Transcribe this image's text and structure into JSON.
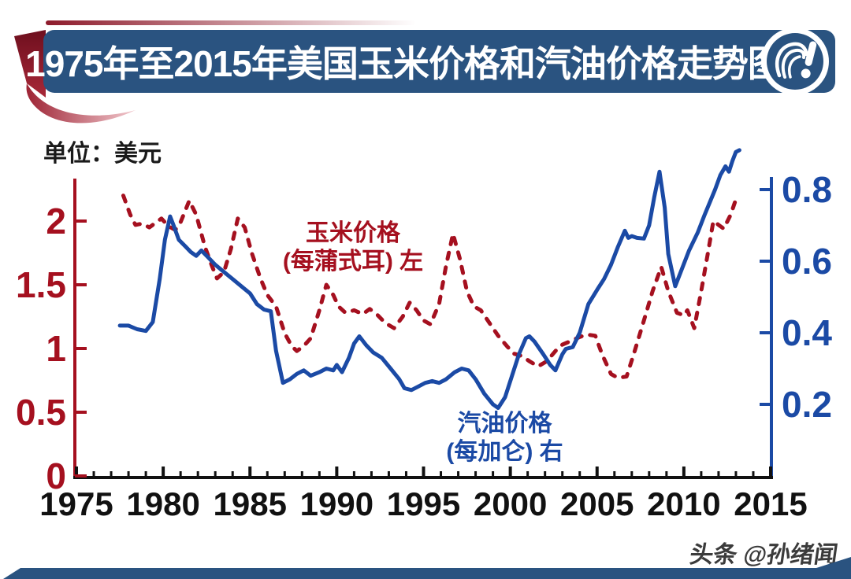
{
  "header": {
    "title": "1975年至2015年美国玉米价格和汽油价格走势图"
  },
  "unit_label": "单位：美元",
  "legend": {
    "corn_line1": "玉米价格",
    "corn_line2": "(每蒲式耳) 左",
    "gas_line1": "汽油价格",
    "gas_line2": "(每加仑) 右"
  },
  "watermark": "头条 @孙绪闻",
  "colors": {
    "corn_red": "#A5101F",
    "gasoline_blue": "#1B4AA5",
    "axis_black": "#111111",
    "banner_navy": "#2A5380",
    "footer_navy": "#2A5380"
  },
  "chart_data": {
    "type": "line",
    "title": "1975年至2015年美国玉米价格和汽油价格走势图",
    "grid": false,
    "x_axis": {
      "range": [
        1975,
        2015
      ],
      "ticks": [
        1975,
        1980,
        1985,
        1990,
        1995,
        2000,
        2005,
        2010,
        2015
      ],
      "minor_tick_step": 1,
      "color": "#111111"
    },
    "y_left": {
      "ticks": [
        0,
        0.5,
        1,
        1.5,
        2
      ],
      "lim": [
        0,
        2.33
      ],
      "color": "#A5101F",
      "label": "玉米价格(每蒲式耳)，美元"
    },
    "y_right": {
      "ticks": [
        0.2,
        0.4,
        0.6,
        0.8
      ],
      "lim": [
        0,
        0.835
      ],
      "color": "#1B4AA5",
      "label": "汽油价格(每加仑)，美元"
    },
    "series": [
      {
        "name": "玉米价格 (每蒲式耳) 左",
        "axis": "left",
        "style": "dashed",
        "color": "#A5101F",
        "points": [
          [
            1977.7,
            2.2
          ],
          [
            1978.1,
            2.05
          ],
          [
            1978.4,
            1.97
          ],
          [
            1978.8,
            1.98
          ],
          [
            1979.2,
            1.95
          ],
          [
            1979.6,
            1.99
          ],
          [
            1979.9,
            2.02
          ],
          [
            1980.3,
            1.96
          ],
          [
            1980.7,
            1.93
          ],
          [
            1981.0,
            1.99
          ],
          [
            1981.5,
            2.16
          ],
          [
            1981.9,
            2.05
          ],
          [
            1982.4,
            1.8
          ],
          [
            1982.8,
            1.65
          ],
          [
            1983.1,
            1.55
          ],
          [
            1983.5,
            1.6
          ],
          [
            1983.9,
            1.78
          ],
          [
            1984.3,
            2.02
          ],
          [
            1984.7,
            1.95
          ],
          [
            1985.1,
            1.75
          ],
          [
            1985.6,
            1.55
          ],
          [
            1986.0,
            1.42
          ],
          [
            1986.5,
            1.33
          ],
          [
            1987.0,
            1.12
          ],
          [
            1987.4,
            1.02
          ],
          [
            1987.7,
            0.98
          ],
          [
            1988.1,
            1.02
          ],
          [
            1988.5,
            1.08
          ],
          [
            1989.0,
            1.3
          ],
          [
            1989.4,
            1.5
          ],
          [
            1989.8,
            1.42
          ],
          [
            1990.1,
            1.33
          ],
          [
            1990.5,
            1.28
          ],
          [
            1991.0,
            1.3
          ],
          [
            1991.5,
            1.27
          ],
          [
            1991.9,
            1.31
          ],
          [
            1992.3,
            1.27
          ],
          [
            1992.8,
            1.2
          ],
          [
            1993.3,
            1.16
          ],
          [
            1993.8,
            1.25
          ],
          [
            1994.2,
            1.36
          ],
          [
            1994.6,
            1.3
          ],
          [
            1995.0,
            1.22
          ],
          [
            1995.4,
            1.19
          ],
          [
            1995.9,
            1.35
          ],
          [
            1996.3,
            1.65
          ],
          [
            1996.7,
            1.9
          ],
          [
            1997.1,
            1.7
          ],
          [
            1997.5,
            1.45
          ],
          [
            1997.9,
            1.33
          ],
          [
            1998.3,
            1.3
          ],
          [
            1998.8,
            1.2
          ],
          [
            1999.3,
            1.1
          ],
          [
            1999.8,
            1.02
          ],
          [
            2000.2,
            0.96
          ],
          [
            2000.7,
            0.94
          ],
          [
            2001.1,
            0.9
          ],
          [
            2001.6,
            0.86
          ],
          [
            2002.1,
            0.9
          ],
          [
            2002.6,
            0.98
          ],
          [
            2003.0,
            1.03
          ],
          [
            2003.5,
            1.06
          ],
          [
            2004.0,
            1.09
          ],
          [
            2004.4,
            1.11
          ],
          [
            2004.9,
            1.1
          ],
          [
            2005.3,
            0.95
          ],
          [
            2005.8,
            0.8
          ],
          [
            2006.2,
            0.77
          ],
          [
            2006.7,
            0.78
          ],
          [
            2007.1,
            0.95
          ],
          [
            2007.7,
            1.22
          ],
          [
            2008.2,
            1.45
          ],
          [
            2008.7,
            1.64
          ],
          [
            2009.1,
            1.45
          ],
          [
            2009.6,
            1.28
          ],
          [
            2010.0,
            1.26
          ],
          [
            2010.2,
            1.3
          ],
          [
            2010.6,
            1.16
          ],
          [
            2011.0,
            1.45
          ],
          [
            2011.4,
            1.76
          ],
          [
            2011.7,
            2.0
          ],
          [
            2012.0,
            1.97
          ],
          [
            2012.3,
            1.94
          ],
          [
            2012.7,
            2.05
          ],
          [
            2013.0,
            2.17
          ]
        ]
      },
      {
        "name": "汽油价格 (每加仑) 右",
        "axis": "right",
        "style": "solid",
        "color": "#1B4AA5",
        "points": [
          [
            1977.5,
            0.42
          ],
          [
            1978.0,
            0.42
          ],
          [
            1978.5,
            0.41
          ],
          [
            1979.0,
            0.405
          ],
          [
            1979.4,
            0.43
          ],
          [
            1979.8,
            0.55
          ],
          [
            1980.1,
            0.66
          ],
          [
            1980.4,
            0.725
          ],
          [
            1980.6,
            0.7
          ],
          [
            1980.9,
            0.66
          ],
          [
            1981.3,
            0.64
          ],
          [
            1981.6,
            0.625
          ],
          [
            1981.9,
            0.615
          ],
          [
            1982.2,
            0.63
          ],
          [
            1982.6,
            0.61
          ],
          [
            1983.0,
            0.59
          ],
          [
            1983.5,
            0.57
          ],
          [
            1984.0,
            0.55
          ],
          [
            1984.5,
            0.53
          ],
          [
            1985.0,
            0.51
          ],
          [
            1985.4,
            0.48
          ],
          [
            1985.8,
            0.465
          ],
          [
            1986.2,
            0.46
          ],
          [
            1986.5,
            0.35
          ],
          [
            1986.9,
            0.26
          ],
          [
            1987.3,
            0.27
          ],
          [
            1987.7,
            0.285
          ],
          [
            1988.1,
            0.295
          ],
          [
            1988.5,
            0.28
          ],
          [
            1989.0,
            0.29
          ],
          [
            1989.4,
            0.3
          ],
          [
            1989.8,
            0.295
          ],
          [
            1990.0,
            0.31
          ],
          [
            1990.3,
            0.29
          ],
          [
            1990.7,
            0.33
          ],
          [
            1991.0,
            0.37
          ],
          [
            1991.3,
            0.39
          ],
          [
            1991.7,
            0.365
          ],
          [
            1992.1,
            0.345
          ],
          [
            1992.6,
            0.33
          ],
          [
            1993.1,
            0.3
          ],
          [
            1993.6,
            0.27
          ],
          [
            1993.9,
            0.245
          ],
          [
            1994.3,
            0.24
          ],
          [
            1994.7,
            0.25
          ],
          [
            1995.1,
            0.26
          ],
          [
            1995.5,
            0.265
          ],
          [
            1995.9,
            0.26
          ],
          [
            1996.3,
            0.27
          ],
          [
            1996.8,
            0.29
          ],
          [
            1997.2,
            0.3
          ],
          [
            1997.6,
            0.295
          ],
          [
            1998.0,
            0.27
          ],
          [
            1998.5,
            0.23
          ],
          [
            1999.0,
            0.2
          ],
          [
            1999.3,
            0.19
          ],
          [
            1999.7,
            0.22
          ],
          [
            2000.1,
            0.28
          ],
          [
            2000.5,
            0.34
          ],
          [
            2000.9,
            0.385
          ],
          [
            2001.1,
            0.39
          ],
          [
            2001.4,
            0.375
          ],
          [
            2001.9,
            0.34
          ],
          [
            2002.3,
            0.31
          ],
          [
            2002.6,
            0.295
          ],
          [
            2003.0,
            0.34
          ],
          [
            2003.2,
            0.355
          ],
          [
            2003.6,
            0.36
          ],
          [
            2004.0,
            0.4
          ],
          [
            2004.5,
            0.48
          ],
          [
            2005.0,
            0.52
          ],
          [
            2005.4,
            0.55
          ],
          [
            2005.8,
            0.59
          ],
          [
            2006.2,
            0.64
          ],
          [
            2006.6,
            0.685
          ],
          [
            2006.8,
            0.665
          ],
          [
            2007.0,
            0.67
          ],
          [
            2007.3,
            0.665
          ],
          [
            2007.7,
            0.663
          ],
          [
            2008.0,
            0.7
          ],
          [
            2008.3,
            0.78
          ],
          [
            2008.6,
            0.85
          ],
          [
            2008.9,
            0.75
          ],
          [
            2009.1,
            0.62
          ],
          [
            2009.5,
            0.53
          ],
          [
            2009.9,
            0.58
          ],
          [
            2010.3,
            0.63
          ],
          [
            2010.8,
            0.68
          ],
          [
            2011.2,
            0.73
          ],
          [
            2011.8,
            0.8
          ],
          [
            2012.1,
            0.84
          ],
          [
            2012.4,
            0.865
          ],
          [
            2012.6,
            0.85
          ],
          [
            2012.8,
            0.88
          ],
          [
            2013.0,
            0.905
          ],
          [
            2013.2,
            0.91
          ]
        ]
      }
    ]
  }
}
